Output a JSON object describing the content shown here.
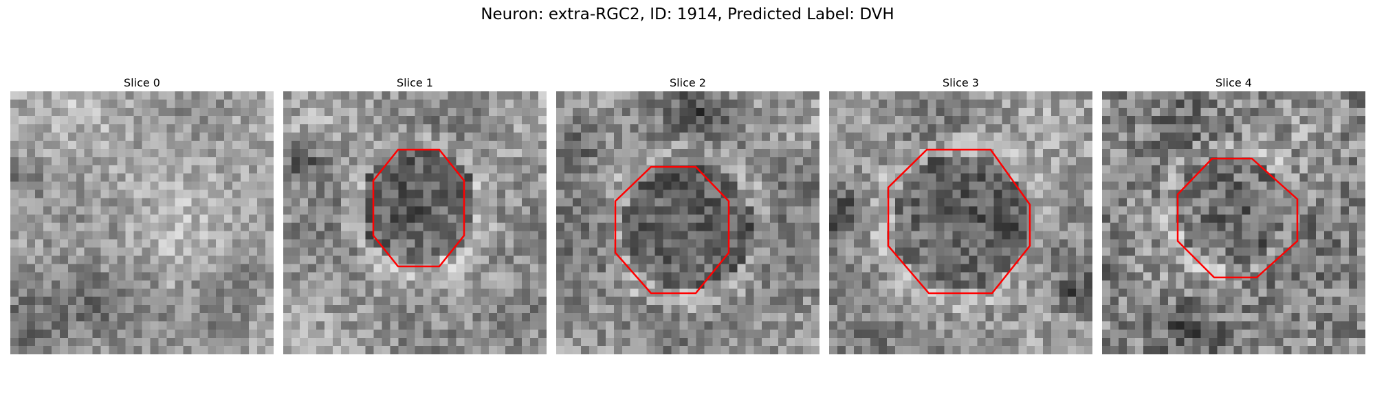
{
  "title": "Neuron: extra-RGC2, ID: 1914, Predicted Label: DVH",
  "roi_color": "#ff0000",
  "slices": [
    {
      "title": "Slice 0",
      "has_roi": false
    },
    {
      "title": "Slice 1",
      "has_roi": true
    },
    {
      "title": "Slice 2",
      "has_roi": true
    },
    {
      "title": "Slice 3",
      "has_roi": true
    },
    {
      "title": "Slice 4",
      "has_roi": true
    }
  ]
}
